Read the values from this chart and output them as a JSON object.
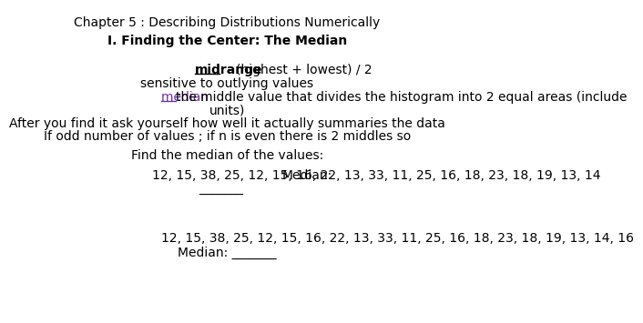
{
  "background_color": "#ffffff",
  "title": "Chapter 5 : Describing Distributions Numerically",
  "title_fontsize": 10,
  "bold_heading": "I. Finding the Center: The Median",
  "midrange_word": "midrange",
  "midrange_rest": "  - (highest + lowest) / 2",
  "sensitive": "sensitive to outlying values",
  "median_word": "median ",
  "median_rest": "the middle value that divides the histogram into 2 equal areas (include",
  "units": "units)",
  "after": "After you find it ask yourself how well it actually summaries the data",
  "if_odd": "If odd number of values ; if n is even there is 2 middles so",
  "find": "Find the median of the values:",
  "data1": "12, 15, 38, 25, 12, 15, 16, 22, 13, 33, 11, 25, 16, 18, 23, 18, 19, 13, 14",
  "median_label": "Median:",
  "blank1": "_______",
  "data2": "12, 15, 38, 25, 12, 15, 16, 22, 13, 33, 11, 25, 16, 18, 23, 18, 19, 13, 14, 16",
  "median_line2": "Median: _______",
  "purple": "#7030a0",
  "black": "#000000"
}
